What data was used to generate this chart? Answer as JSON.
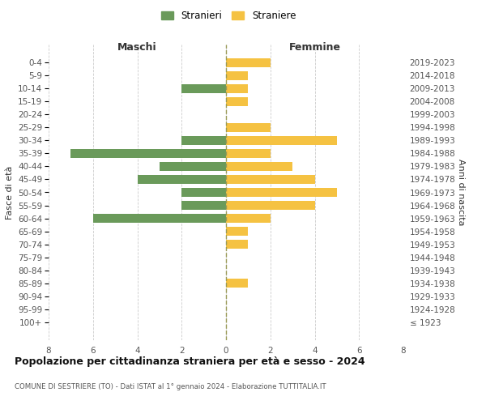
{
  "age_groups": [
    "0-4",
    "5-9",
    "10-14",
    "15-19",
    "20-24",
    "25-29",
    "30-34",
    "35-39",
    "40-44",
    "45-49",
    "50-54",
    "55-59",
    "60-64",
    "65-69",
    "70-74",
    "75-79",
    "80-84",
    "85-89",
    "90-94",
    "95-99",
    "100+"
  ],
  "birth_years": [
    "2019-2023",
    "2014-2018",
    "2009-2013",
    "2004-2008",
    "1999-2003",
    "1994-1998",
    "1989-1993",
    "1984-1988",
    "1979-1983",
    "1974-1978",
    "1969-1973",
    "1964-1968",
    "1959-1963",
    "1954-1958",
    "1949-1953",
    "1944-1948",
    "1939-1943",
    "1934-1938",
    "1929-1933",
    "1924-1928",
    "≤ 1923"
  ],
  "males": [
    0,
    0,
    2,
    0,
    0,
    0,
    2,
    7,
    3,
    4,
    2,
    2,
    6,
    0,
    0,
    0,
    0,
    0,
    0,
    0,
    0
  ],
  "females": [
    2,
    1,
    1,
    1,
    0,
    2,
    5,
    2,
    3,
    4,
    5,
    4,
    2,
    1,
    1,
    0,
    0,
    1,
    0,
    0,
    0
  ],
  "male_color": "#6a9a5a",
  "female_color": "#f5c242",
  "background_color": "#ffffff",
  "grid_color": "#cccccc",
  "title": "Popolazione per cittadinanza straniera per età e sesso - 2024",
  "subtitle": "COMUNE DI SESTRIERE (TO) - Dati ISTAT al 1° gennaio 2024 - Elaborazione TUTTITALIA.IT",
  "xlabel_left": "Maschi",
  "xlabel_right": "Femmine",
  "ylabel_left": "Fasce di età",
  "ylabel_right": "Anni di nascita",
  "legend_male": "Stranieri",
  "legend_female": "Straniere",
  "xlim": 8,
  "center_line_color": "#999955"
}
